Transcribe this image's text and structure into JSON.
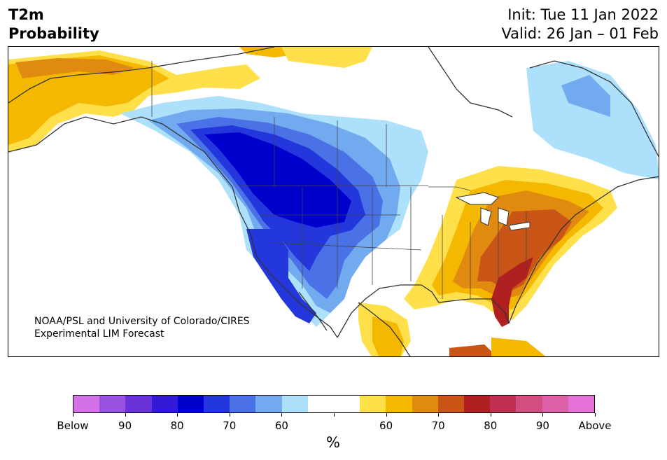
{
  "title": {
    "line1": "T2m",
    "line2": "Probability"
  },
  "header_right": {
    "init": "Init: Tue 11 Jan 2022",
    "valid": "Valid: 26 Jan – 01 Feb"
  },
  "credit": {
    "line1": "NOAA/PSL and University of Colorado/CIRES",
    "line2": "Experimental LIM Forecast"
  },
  "colorbar": {
    "unit": "%",
    "colors": [
      "#d670e8",
      "#9a52e0",
      "#6a33d8",
      "#3418d8",
      "#0000cd",
      "#2337dd",
      "#4a72e6",
      "#72aaf0",
      "#ade0fb",
      "#ffffff",
      "#ffffff",
      "#ffe04a",
      "#f5b800",
      "#e08a10",
      "#c95617",
      "#b02020",
      "#c03050",
      "#d04e80",
      "#dc60a8",
      "#e470d8"
    ],
    "tick_labels": [
      "Below",
      "90",
      "80",
      "70",
      "60",
      "",
      "60",
      "70",
      "80",
      "90",
      "Above"
    ]
  },
  "map": {
    "type": "contour-probability",
    "below_normal_region": "Western US and western Canada (peak ~80% in Pacific Northwest / Intermountain West)",
    "above_normal_region": "Eastern US (peak ~80% in Southeast / Florida), Alaska, Mexico"
  }
}
